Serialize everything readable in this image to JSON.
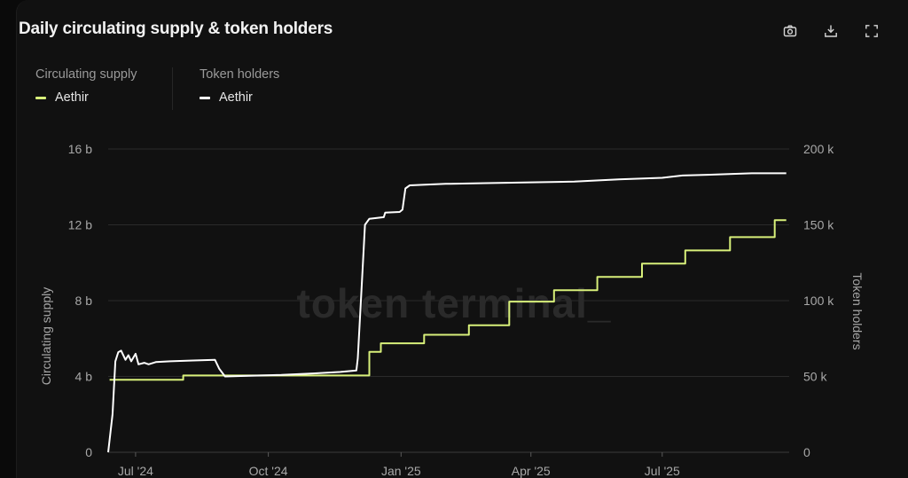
{
  "header": {
    "title": "Daily circulating supply & token holders"
  },
  "toolbar": {
    "icons": [
      "camera-icon",
      "download-icon",
      "fullscreen-icon"
    ]
  },
  "legend": {
    "left_group_title": "Circulating supply",
    "left_item_label": "Aethir",
    "right_group_title": "Token holders",
    "right_item_label": "Aethir"
  },
  "watermark": "token terminal_",
  "colors": {
    "supply": "#d8f07a",
    "holders": "#ffffff",
    "grid": "#2b2b2b",
    "background": "#111111"
  },
  "chart_data": {
    "type": "line",
    "title": "Daily circulating supply & token holders",
    "x_start": "2024-06-12",
    "x_ticks": [
      {
        "date": "2024-07-01",
        "label": "Jul '24"
      },
      {
        "date": "2024-10-01",
        "label": "Oct '24"
      },
      {
        "date": "2025-01-01",
        "label": "Jan '25"
      },
      {
        "date": "2025-04-01",
        "label": "Apr '25"
      },
      {
        "date": "2025-07-01",
        "label": "Jul '25"
      }
    ],
    "y_left": {
      "label": "Circulating supply",
      "ylim": [
        0,
        16000000000
      ],
      "ticks": [
        0,
        4000000000,
        8000000000,
        12000000000,
        16000000000
      ],
      "tick_labels": [
        "0",
        "4 b",
        "8 b",
        "12 b",
        "16 b"
      ]
    },
    "y_right": {
      "label": "Token holders",
      "ylim": [
        0,
        200000
      ],
      "ticks": [
        0,
        50000,
        100000,
        150000,
        200000
      ],
      "tick_labels": [
        "0",
        "50 k",
        "100 k",
        "150 k",
        "200 k"
      ]
    },
    "grid": true,
    "series": [
      {
        "name": "Aethir",
        "group": "Circulating supply",
        "axis": "left",
        "step": true,
        "points": [
          [
            "2024-06-13",
            3820000000.0
          ],
          [
            "2024-08-03",
            3820000000.0
          ],
          [
            "2024-08-03",
            4050000000.0
          ],
          [
            "2024-12-10",
            4050000000.0
          ],
          [
            "2024-12-10",
            5300000000.0
          ],
          [
            "2024-12-18",
            5300000000.0
          ],
          [
            "2024-12-18",
            5750000000.0
          ],
          [
            "2025-01-17",
            5750000000.0
          ],
          [
            "2025-01-17",
            6200000000.0
          ],
          [
            "2025-02-17",
            6200000000.0
          ],
          [
            "2025-02-17",
            6700000000.0
          ],
          [
            "2025-03-17",
            6700000000.0
          ],
          [
            "2025-03-17",
            7950000000.0
          ],
          [
            "2025-04-17",
            7950000000.0
          ],
          [
            "2025-04-17",
            8550000000.0
          ],
          [
            "2025-05-17",
            8550000000.0
          ],
          [
            "2025-05-17",
            9250000000.0
          ],
          [
            "2025-06-17",
            9250000000.0
          ],
          [
            "2025-06-17",
            9950000000.0
          ],
          [
            "2025-07-17",
            9950000000.0
          ],
          [
            "2025-07-17",
            10650000000.0
          ],
          [
            "2025-08-17",
            10650000000.0
          ],
          [
            "2025-08-17",
            11350000000.0
          ],
          [
            "2025-09-17",
            11350000000.0
          ],
          [
            "2025-09-17",
            12250000000.0
          ],
          [
            "2025-09-25",
            12250000000.0
          ]
        ]
      },
      {
        "name": "Aethir",
        "group": "Token holders",
        "axis": "right",
        "step": false,
        "points": [
          [
            "2024-06-12",
            0
          ],
          [
            "2024-06-15",
            25000
          ],
          [
            "2024-06-17",
            60000
          ],
          [
            "2024-06-19",
            66000
          ],
          [
            "2024-06-21",
            67000
          ],
          [
            "2024-06-24",
            61000
          ],
          [
            "2024-06-26",
            64000
          ],
          [
            "2024-06-28",
            60000
          ],
          [
            "2024-07-01",
            65000
          ],
          [
            "2024-07-03",
            58000
          ],
          [
            "2024-07-07",
            59000
          ],
          [
            "2024-07-10",
            58000
          ],
          [
            "2024-07-15",
            59500
          ],
          [
            "2024-07-25",
            60000
          ],
          [
            "2024-08-10",
            60500
          ],
          [
            "2024-08-25",
            61000
          ],
          [
            "2024-08-28",
            55000
          ],
          [
            "2024-09-01",
            50000
          ],
          [
            "2024-09-20",
            50500
          ],
          [
            "2024-10-10",
            51000
          ],
          [
            "2024-11-01",
            52000
          ],
          [
            "2024-11-20",
            53000
          ],
          [
            "2024-12-01",
            54000
          ],
          [
            "2024-12-02",
            62000
          ],
          [
            "2024-12-05",
            115000
          ],
          [
            "2024-12-07",
            150000
          ],
          [
            "2024-12-10",
            154000
          ],
          [
            "2024-12-20",
            155000
          ],
          [
            "2024-12-21",
            158000
          ],
          [
            "2024-12-31",
            158500
          ],
          [
            "2025-01-02",
            160000
          ],
          [
            "2025-01-04",
            174000
          ],
          [
            "2025-01-07",
            176000
          ],
          [
            "2025-02-01",
            177000
          ],
          [
            "2025-03-01",
            177500
          ],
          [
            "2025-04-01",
            178000
          ],
          [
            "2025-05-01",
            178500
          ],
          [
            "2025-06-01",
            180000
          ],
          [
            "2025-07-01",
            181000
          ],
          [
            "2025-07-15",
            182500
          ],
          [
            "2025-08-01",
            183000
          ],
          [
            "2025-09-01",
            184000
          ],
          [
            "2025-09-25",
            184000
          ]
        ]
      }
    ]
  }
}
